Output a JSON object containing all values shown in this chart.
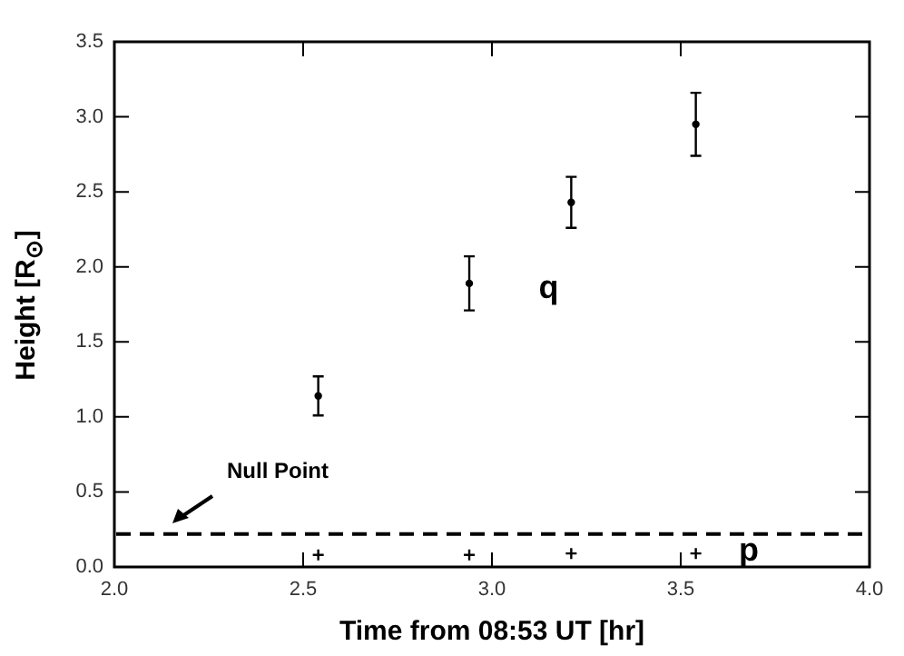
{
  "chart_data": {
    "type": "scatter",
    "xlabel": "Time from 08:53 UT [hr]",
    "ylabel": "Height [R$_{⊙}$]",
    "xlim": [
      2.0,
      4.0
    ],
    "xticks": [
      {
        "value": 2,
        "label": "2.0"
      },
      {
        "value": 2.5,
        "label": "2.5"
      },
      {
        "value": 3,
        "label": "3.0"
      },
      {
        "value": 3.5,
        "label": "3.5"
      },
      {
        "value": 4,
        "label": "4.0"
      }
    ],
    "ylim": [
      0,
      3.5
    ],
    "yticks": [
      {
        "value": 0,
        "label": "0.0"
      },
      {
        "value": 0.5,
        "label": "0.5"
      },
      {
        "value": 1,
        "label": "1.0"
      },
      {
        "value": 1.5,
        "label": "1.5"
      },
      {
        "value": 2,
        "label": "2.0"
      },
      {
        "value": 2.5,
        "label": "2.5"
      },
      {
        "value": 3,
        "label": "3.0"
      },
      {
        "value": 3.5,
        "label": "3.5"
      }
    ],
    "series": [
      {
        "color": "#000000",
        "marker": "circle",
        "x": [
          2.54,
          2.94,
          3.21,
          3.54
        ],
        "values": [
          1.14,
          1.89,
          2.43,
          2.95
        ],
        "errors": [
          0.13,
          0.18,
          0.17,
          0.21
        ]
      },
      {
        "color": "#000000",
        "marker": "cross",
        "x": [
          2.54,
          2.94,
          3.21,
          3.54
        ],
        "values": [
          0.08,
          0.08,
          0.09,
          0.09
        ]
      }
    ],
    "ref_lines": [
      {
        "axis": "y",
        "value": 0.22,
        "label": "Null Point",
        "color": "#000000",
        "line_style": "dashed"
      }
    ],
    "annotations": [
      "q",
      "p"
    ],
    "grid": false,
    "legend": false
  }
}
